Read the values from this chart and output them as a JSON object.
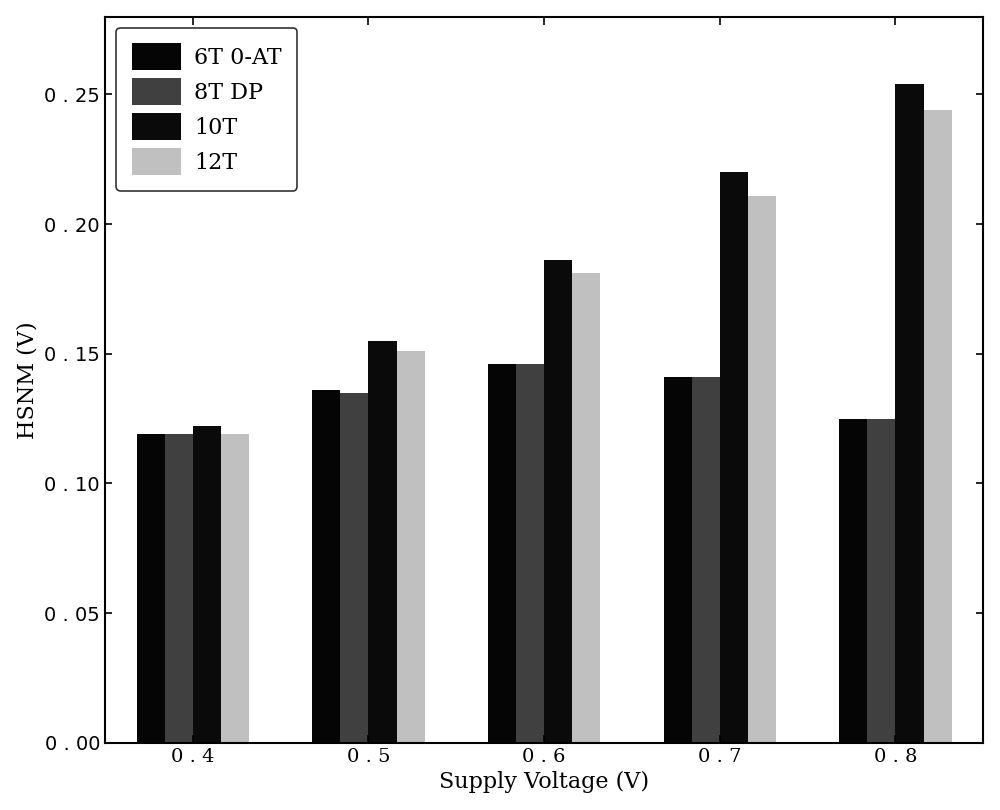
{
  "categories": [
    0.4,
    0.5,
    0.6,
    0.7,
    0.8
  ],
  "series": {
    "6T 0-AT": [
      0.119,
      0.136,
      0.146,
      0.141,
      0.125
    ],
    "8T DP": [
      0.119,
      0.135,
      0.146,
      0.141,
      0.125
    ],
    "10T": [
      0.122,
      0.155,
      0.186,
      0.22,
      0.254
    ],
    "12T": [
      0.119,
      0.151,
      0.181,
      0.211,
      0.244
    ]
  },
  "colors": {
    "6T 0-AT": "#050505",
    "8T DP": "#404040",
    "10T": "#0a0a0a",
    "12T": "#c0c0c0"
  },
  "ylabel": "HSNM (V)",
  "xlabel": "Supply Voltage (V)",
  "ylim": [
    0.0,
    0.28
  ],
  "yticks": [
    0.0,
    0.05,
    0.1,
    0.15,
    0.2,
    0.25
  ],
  "bar_width": 0.16,
  "legend_labels": [
    "6T 0-AT",
    "8T DP",
    "10T",
    "12T"
  ],
  "legend_fontsize": 16,
  "axis_label_fontsize": 16,
  "tick_fontsize": 14,
  "background_color": "#ffffff",
  "edge_color": "#000000"
}
